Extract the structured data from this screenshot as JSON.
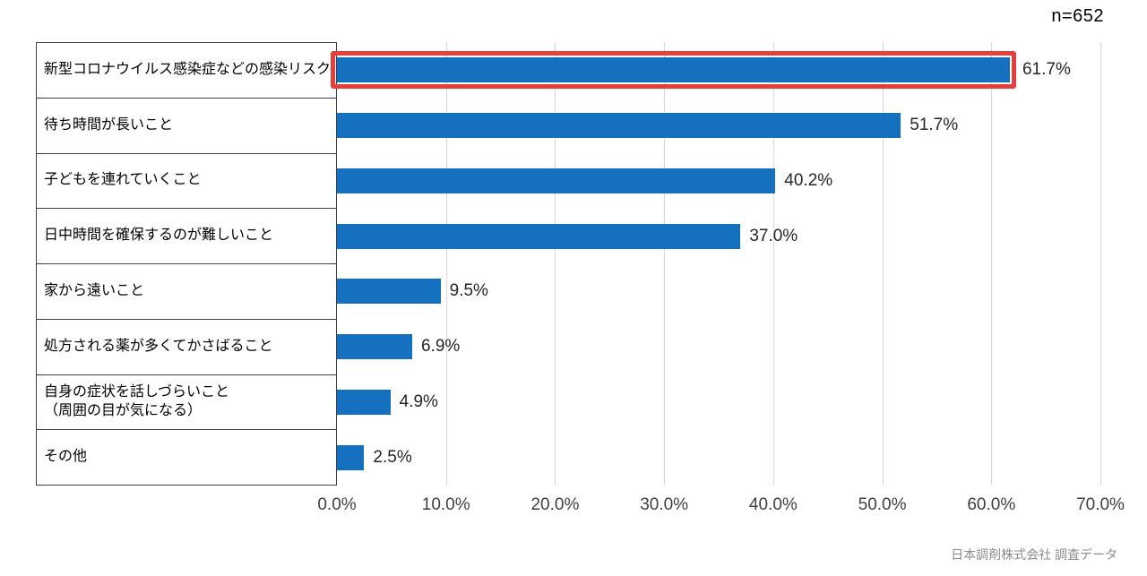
{
  "header": {
    "sample_size": "n=652"
  },
  "chart_data": {
    "type": "bar",
    "orientation": "horizontal",
    "title": "",
    "xlabel": "",
    "ylabel": "",
    "xlim": [
      0,
      70
    ],
    "grid": "vertical",
    "annotation": "n=652",
    "categories": [
      "新型コロナウイルス感染症などの感染リスク",
      "待ち時間が長いこと",
      "子どもを連れていくこと",
      "日中時間を確保するのが難しいこと",
      "家から遠いこと",
      "処方される薬が多くてかさばること",
      "自身の症状を話しづらいこと\n（周囲の目が気になる）",
      "その他"
    ],
    "values": [
      61.7,
      51.7,
      40.2,
      37.0,
      9.5,
      6.9,
      4.9,
      2.5
    ],
    "value_labels": [
      "61.7%",
      "51.7%",
      "40.2%",
      "37.0%",
      "9.5%",
      "6.9%",
      "4.9%",
      "2.5%"
    ],
    "x_tick_values": [
      0,
      10,
      20,
      30,
      40,
      50,
      60,
      70
    ],
    "x_tick_labels": [
      "0.0%",
      "10.0%",
      "20.0%",
      "30.0%",
      "40.0%",
      "50.0%",
      "60.0%",
      "70.0%"
    ],
    "highlight_index": 0,
    "colors": {
      "bar": "#1670c0",
      "highlight_border": "#e3403c",
      "gridline": "#d9d9d9",
      "box_border": "#404040"
    }
  },
  "footer": {
    "source": "日本調剤株式会社  調査データ"
  }
}
